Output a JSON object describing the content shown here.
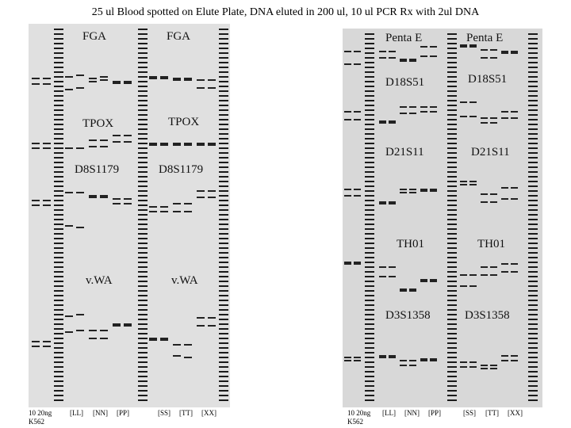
{
  "title": "25 ul Blood spotted on Elute Plate, DNA eluted in 200 ul, 10 ul PCR Rx with 2ul DNA",
  "left_gel": {
    "loci": {
      "fga_1": "FGA",
      "fga_2": "FGA",
      "tpox_1": "TPOX",
      "tpox_2": "TPOX",
      "d8_1": "D8S1179",
      "d8_2": "D8S1179",
      "vwa_1": "v.WA",
      "vwa_2": "v.WA"
    },
    "footer": {
      "ctrl_top": "10 20ng",
      "ctrl_bottom": "K562",
      "g1": "[LL]",
      "g2": "[NN]",
      "g3": "[PP]",
      "g4": "[SS]",
      "g5": "[TT]",
      "g6": "[XX]"
    }
  },
  "right_gel": {
    "loci": {
      "penta_1": "Penta E",
      "penta_2": "Penta E",
      "d18_1": "D18S51",
      "d18_2": "D18S51",
      "d21_1": "D21S11",
      "d21_2": "D21S11",
      "th_1": "TH01",
      "th_2": "TH01",
      "d3_1": "D3S1358",
      "d3_2": "D3S1358"
    },
    "footer": {
      "ctrl_top": "10 20ng",
      "ctrl_bottom": "K562",
      "g1": "[LL]",
      "g2": "[NN]",
      "g3": "[PP]",
      "g4": "[SS]",
      "g5": "[TT]",
      "g6": "[XX]"
    }
  }
}
